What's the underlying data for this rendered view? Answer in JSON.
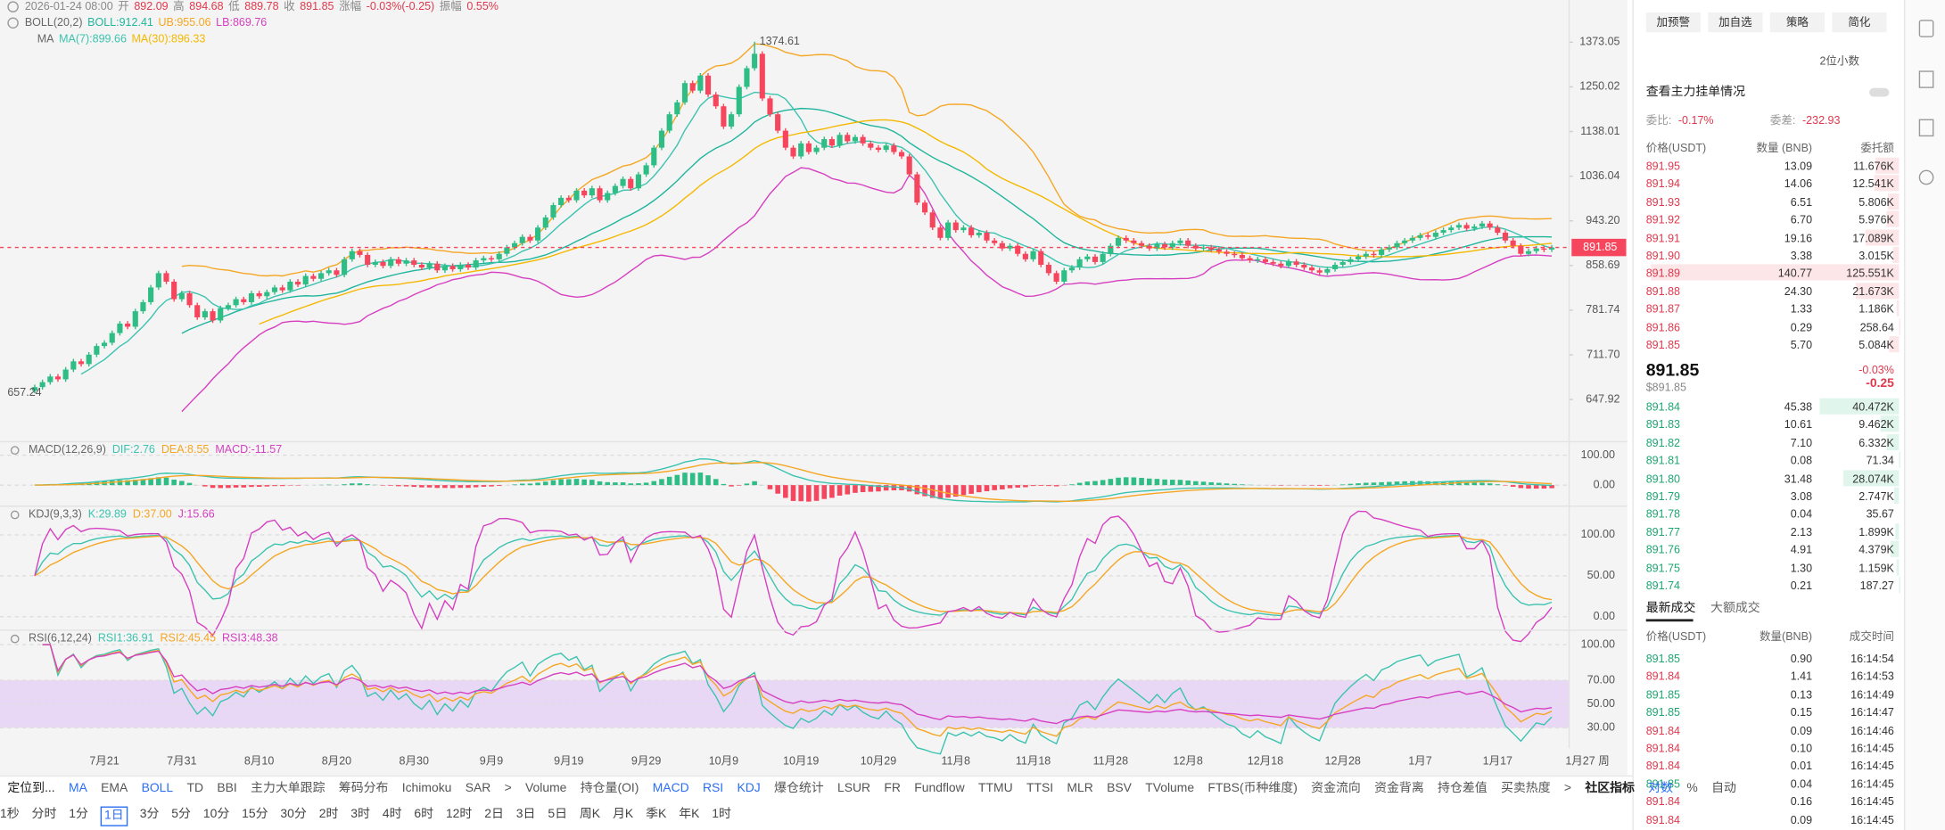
{
  "header": {
    "time": "2026-01-24 08:00",
    "fields": [
      [
        "开",
        "892.09"
      ],
      [
        "高",
        "894.68"
      ],
      [
        "低",
        "889.78"
      ],
      [
        "收",
        "891.85"
      ],
      [
        "涨幅",
        "-0.03%(-0.25)"
      ],
      [
        "振幅",
        "0.55%"
      ]
    ]
  },
  "boll_legend": {
    "name": "BOLL(20,2)",
    "items": [
      "BOLL:912.41",
      "UB:955.06",
      "LB:869.76"
    ]
  },
  "ma_legend": {
    "name": "MA",
    "items": [
      "MA(7):899.66",
      "MA(30):896.33"
    ]
  },
  "chart_data": {
    "type": "candlestick",
    "log": true,
    "first_open": 660,
    "closes": [
      665,
      672,
      680,
      676,
      690,
      702,
      698,
      712,
      725,
      730,
      745,
      760,
      755,
      780,
      795,
      820,
      845,
      830,
      800,
      810,
      790,
      770,
      780,
      765,
      785,
      790,
      800,
      795,
      810,
      805,
      812,
      820,
      815,
      830,
      825,
      840,
      835,
      845,
      850,
      842,
      870,
      885,
      878,
      860,
      865,
      858,
      870,
      862,
      868,
      860,
      855,
      862,
      850,
      858,
      852,
      860,
      855,
      868,
      872,
      870,
      880,
      892,
      900,
      912,
      905,
      930,
      950,
      975,
      990,
      985,
      1005,
      995,
      1010,
      985,
      1000,
      1015,
      1030,
      1010,
      1040,
      1060,
      1100,
      1140,
      1180,
      1210,
      1260,
      1240,
      1280,
      1230,
      1200,
      1150,
      1180,
      1250,
      1300,
      1340,
      1220,
      1180,
      1140,
      1100,
      1080,
      1110,
      1090,
      1100,
      1120,
      1105,
      1130,
      1115,
      1125,
      1110,
      1100,
      1095,
      1105,
      1090,
      1080,
      1040,
      980,
      960,
      930,
      910,
      940,
      925,
      930,
      915,
      920,
      905,
      900,
      890,
      895,
      880,
      870,
      885,
      860,
      845,
      830,
      850,
      855,
      870,
      875,
      865,
      880,
      895,
      910,
      905,
      900,
      895,
      890,
      898,
      892,
      900,
      905,
      895,
      890,
      892,
      888,
      884,
      880,
      878,
      872,
      868,
      870,
      865,
      862,
      858,
      866,
      860,
      855,
      850,
      846,
      852,
      860,
      865,
      870,
      875,
      880,
      878,
      888,
      892,
      900,
      905,
      910,
      915,
      912,
      920,
      925,
      930,
      935,
      928,
      932,
      938,
      930,
      920,
      905,
      895,
      880,
      885,
      890,
      888,
      891.85
    ],
    "ylim": [
      594.5,
      1461.8
    ],
    "yticks": [
      1373.05,
      1250.02,
      1138.01,
      1036.04,
      {
        "value": 943.2,
        "label": "943.20"
      },
      858.69,
      781.74,
      {
        "value": 711.7,
        "label": "711.70"
      },
      647.92
    ],
    "xticks": [
      "7月21",
      "7月31",
      "8月10",
      "8月20",
      "8月30",
      "9月9",
      "9月19",
      "9月29",
      "10月9",
      "10月19",
      "10月29",
      "11月8",
      "11月18",
      "11月28",
      "12月8",
      "12月18",
      "12月28",
      "1月7",
      "1月17",
      "1月27 周"
    ],
    "high_label": {
      "value": 1374.61,
      "label": "1374.61"
    },
    "low_label": {
      "value": 657.24,
      "label": "657.24"
    },
    "last_price": {
      "value": 891.85,
      "label": "891.85"
    },
    "colors": {
      "up": "#2ebd85",
      "down": "#f6465d",
      "boll": "#1fb59c",
      "ub": "#f5a623",
      "lb": "#d63fc1",
      "ma7": "#3cc3b0",
      "ma30": "#f5b800"
    }
  },
  "indicators": [
    {
      "name": "MACD(12,26,9)",
      "items": [
        "DIF:2.76",
        "DEA:8.55",
        "MACD:-11.57"
      ],
      "ylim": [
        -58,
        137
      ],
      "yticks": [
        {
          "value": 100,
          "label": "100.00"
        },
        {
          "value": 0,
          "label": "0.00"
        }
      ]
    },
    {
      "name": "KDJ(9,3,3)",
      "items": [
        "K:29.89",
        "D:37.00",
        "J:15.66"
      ],
      "ylim": [
        -12,
        132
      ],
      "yticks": [
        {
          "value": 100,
          "label": "100.00"
        },
        {
          "value": 50,
          "label": "50.00"
        },
        {
          "value": 0,
          "label": "0.00"
        }
      ]
    },
    {
      "name": "RSI(6,12,24)",
      "items": [
        "RSI1:36.91",
        "RSI2:45.45",
        "RSI3:48.38"
      ],
      "ylim": [
        16,
        110
      ],
      "yticks": [
        {
          "value": 100,
          "label": "100.00"
        },
        {
          "value": 70,
          "label": "70.00"
        },
        {
          "value": 50,
          "label": "50.00"
        },
        {
          "value": 30,
          "label": "30.00"
        }
      ]
    }
  ],
  "toolbar": {
    "locate": "定位到...",
    "main": [
      "MA",
      "EMA",
      "BOLL",
      "TD",
      "BBI",
      "主力大单跟踪",
      "筹码分布",
      "Ichimoku",
      "SAR",
      ">"
    ],
    "main_active": [
      0,
      2
    ],
    "sub": [
      "Volume",
      "持仓量(OI)",
      "MACD",
      "RSI",
      "KDJ",
      "爆仓统计",
      "LSUR",
      "FR",
      "Fundflow",
      "TTMU",
      "TTSI",
      "MLR",
      "BSV",
      "TVolume",
      "FTBS(币种维度)",
      "资金流向",
      "资金背离",
      "持仓差值",
      "买卖热度",
      ">"
    ],
    "sub_active": [
      2,
      3,
      4
    ],
    "community": "社区指标",
    "right": [
      "对数",
      "%",
      "自动"
    ]
  },
  "intervals": [
    "1秒",
    "分时",
    "1分",
    "1日",
    "3分",
    "5分",
    "10分",
    "15分",
    "30分",
    "2时",
    "3时",
    "4时",
    "6时",
    "12时",
    "2日",
    "3日",
    "5日",
    "周K",
    "月K",
    "季K",
    "年K",
    "1时"
  ],
  "active_interval": 3,
  "panel": {
    "actions": [
      "加预警",
      "加自选",
      "策略",
      "简化"
    ],
    "decimals": "2位小数",
    "main_orders": "查看主力挂单情况",
    "ratio": [
      "委比:",
      "-0.17%"
    ],
    "diff": [
      "委差:",
      "-232.93"
    ],
    "book_headers": [
      "价格(USDT)",
      "数量 (BNB)",
      "委托额"
    ],
    "asks": [
      [
        "891.95",
        "13.09",
        "11.676K"
      ],
      [
        "891.94",
        "14.06",
        "12.541K"
      ],
      [
        "891.93",
        "6.51",
        "5.806K"
      ],
      [
        "891.92",
        "6.70",
        "5.976K"
      ],
      [
        "891.91",
        "19.16",
        "17.089K"
      ],
      [
        "891.90",
        "3.38",
        "3.015K"
      ],
      [
        "891.89",
        "140.77",
        "125.551K"
      ],
      [
        "891.88",
        "24.30",
        "21.673K"
      ],
      [
        "891.87",
        "1.33",
        "1.186K"
      ],
      [
        "891.86",
        "0.29",
        "258.64"
      ],
      [
        "891.85",
        "5.70",
        "5.084K"
      ]
    ],
    "mid": {
      "price": "891.85",
      "usd": "$891.85",
      "pct": "-0.03%",
      "chg": "-0.25"
    },
    "bids": [
      [
        "891.84",
        "45.38",
        "40.472K"
      ],
      [
        "891.83",
        "10.61",
        "9.462K"
      ],
      [
        "891.82",
        "7.10",
        "6.332K"
      ],
      [
        "891.81",
        "0.08",
        "71.34"
      ],
      [
        "891.80",
        "31.48",
        "28.074K"
      ],
      [
        "891.79",
        "3.08",
        "2.747K"
      ],
      [
        "891.78",
        "0.04",
        "35.67"
      ],
      [
        "891.77",
        "2.13",
        "1.899K"
      ],
      [
        "891.76",
        "4.91",
        "4.379K"
      ],
      [
        "891.75",
        "1.30",
        "1.159K"
      ],
      [
        "891.74",
        "0.21",
        "187.27"
      ]
    ],
    "trade_tabs": [
      "最新成交",
      "大额成交"
    ],
    "trade_headers": [
      "价格(USDT)",
      "数量(BNB)",
      "成交时间"
    ],
    "trades": [
      [
        "891.85",
        "0.90",
        "16:14:54",
        "buy"
      ],
      [
        "891.84",
        "1.41",
        "16:14:53",
        "sell"
      ],
      [
        "891.85",
        "0.13",
        "16:14:49",
        "buy"
      ],
      [
        "891.85",
        "0.15",
        "16:14:47",
        "buy"
      ],
      [
        "891.84",
        "0.09",
        "16:14:46",
        "sell"
      ],
      [
        "891.84",
        "0.10",
        "16:14:45",
        "sell"
      ],
      [
        "891.84",
        "0.01",
        "16:14:45",
        "sell"
      ],
      [
        "891.85",
        "0.04",
        "16:14:45",
        "buy"
      ],
      [
        "891.84",
        "0.16",
        "16:14:45",
        "sell"
      ],
      [
        "891.84",
        "0.09",
        "16:14:45",
        "sell"
      ]
    ]
  }
}
